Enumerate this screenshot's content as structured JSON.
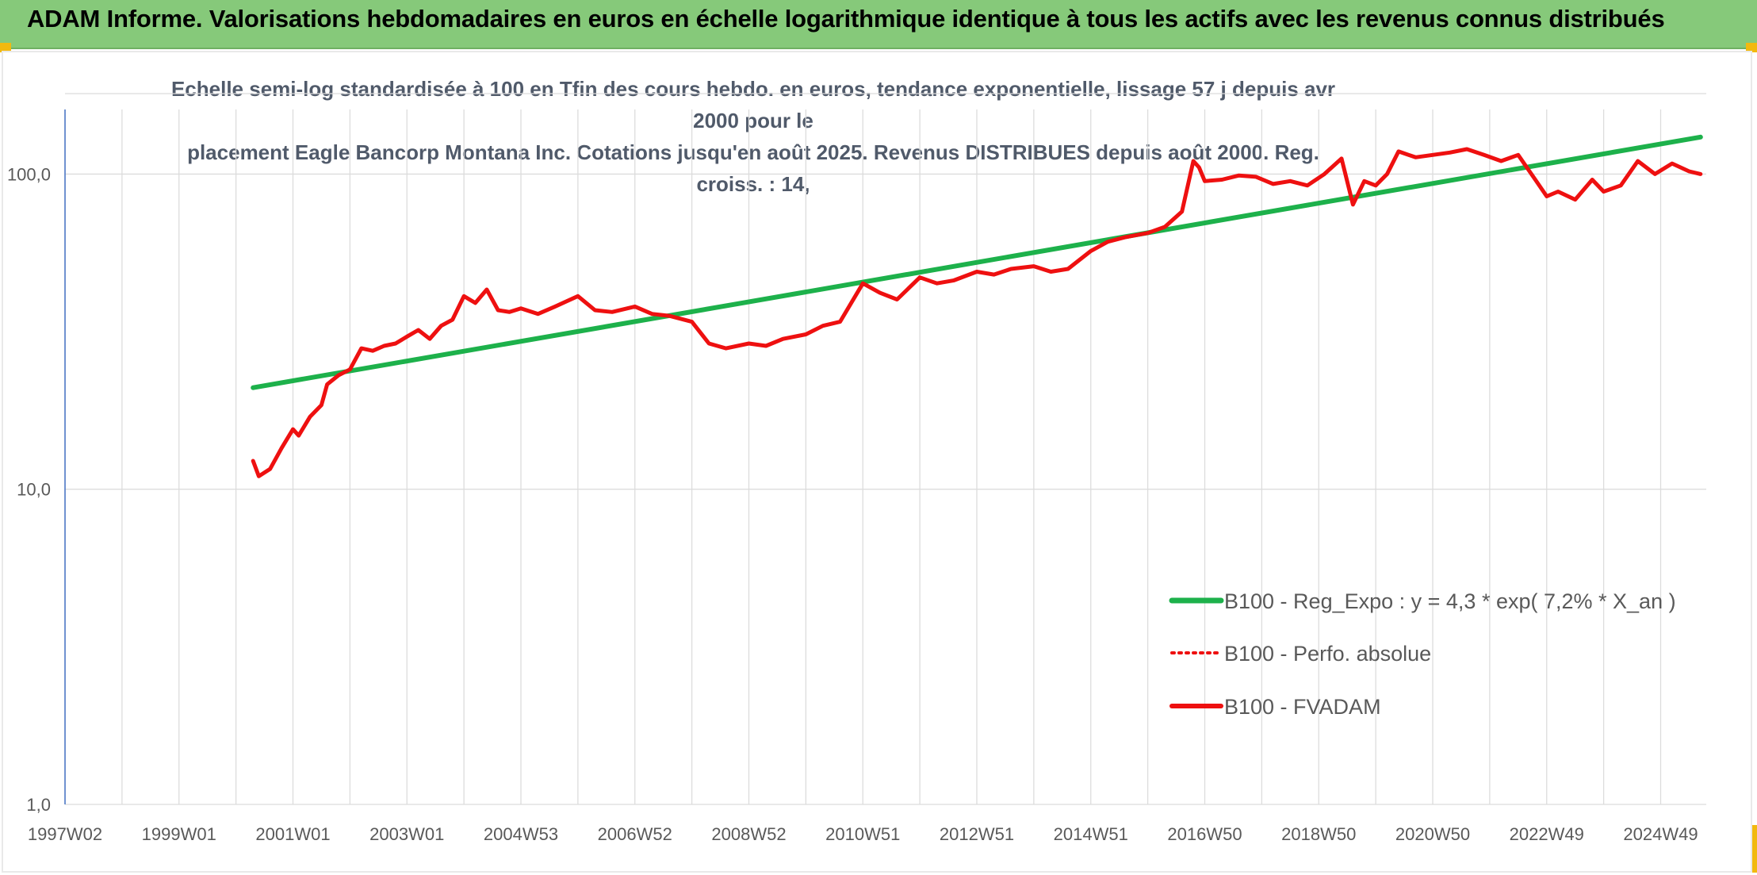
{
  "header": {
    "title": "ADAM Informe. Valorisations hebdomadaires en euros en échelle logarithmique identique à tous les actifs avec les revenus connus distribués"
  },
  "colors": {
    "header_bg": "#86c97a",
    "corner_accent": "#f2b90f",
    "trend": "#1db14b",
    "series": "#ee1010"
  },
  "chart_data": {
    "type": "line",
    "title_line1": "Echelle semi-log standardisée à 100 en Tfin des cours hebdo. en euros, tendance exponentielle, lissage 57 j depuis avr 2000 pour le",
    "title_line2": "placement Eagle Bancorp Montana Inc. Cotations jusqu'en août 2025. Revenus DISTRIBUES depuis août 2000. Reg. croiss. : 14,",
    "y_scale": "log",
    "ylim": [
      1,
      180
    ],
    "y_ticks": [
      1,
      10,
      100
    ],
    "y_tick_labels": [
      "1,0",
      "10,0",
      "100,0"
    ],
    "xlim": [
      1997.0,
      2025.8
    ],
    "x_ticks": [
      1997.0,
      1999.0,
      2001.0,
      2003.0,
      2005.0,
      2007.0,
      2009.0,
      2011.0,
      2013.0,
      2015.0,
      2017.0,
      2019.0,
      2021.0,
      2023.0,
      2025.0
    ],
    "x_tick_labels": [
      "1997W02",
      "1999W01",
      "2001W01",
      "2003W01",
      "2004W53",
      "2006W52",
      "2008W52",
      "2010W51",
      "2012W51",
      "2014W51",
      "2016W50",
      "2018W50",
      "2020W50",
      "2022W49",
      "2024W49"
    ],
    "grid": true,
    "legend_position": "right",
    "series": [
      {
        "name": "B100 - Reg_Expo : y = 4,3 * exp( 7,2% *  X_an )",
        "style": "solid",
        "x": [
          2000.3,
          2025.7
        ],
        "y": [
          21,
          131
        ]
      },
      {
        "name": "B100 - Perfo. absolue",
        "style": "dotted",
        "x": [],
        "y": []
      },
      {
        "name": "B100 - FVADAM",
        "style": "solid",
        "x": [
          2000.3,
          2000.4,
          2000.6,
          2000.8,
          2001.0,
          2001.1,
          2001.3,
          2001.5,
          2001.6,
          2001.8,
          2002.0,
          2002.2,
          2002.4,
          2002.6,
          2002.8,
          2003.0,
          2003.2,
          2003.4,
          2003.6,
          2003.8,
          2004.0,
          2004.2,
          2004.4,
          2004.6,
          2004.8,
          2005.0,
          2005.3,
          2005.6,
          2006.0,
          2006.3,
          2006.6,
          2007.0,
          2007.3,
          2007.6,
          2008.0,
          2008.3,
          2008.6,
          2009.0,
          2009.3,
          2009.6,
          2010.0,
          2010.3,
          2010.6,
          2011.0,
          2011.3,
          2011.6,
          2012.0,
          2012.3,
          2012.6,
          2013.0,
          2013.3,
          2013.6,
          2014.0,
          2014.3,
          2014.6,
          2015.0,
          2015.3,
          2015.6,
          2016.0,
          2016.3,
          2016.6,
          2016.8,
          2016.9,
          2017.0,
          2017.3,
          2017.6,
          2017.9,
          2018.2,
          2018.5,
          2018.8,
          2019.1,
          2019.4,
          2019.6,
          2019.8,
          2020.0,
          2020.2,
          2020.4,
          2020.7,
          2021.0,
          2021.3,
          2021.6,
          2021.9,
          2022.2,
          2022.5,
          2022.8,
          2023.0,
          2023.2,
          2023.5,
          2023.8,
          2024.0,
          2024.3,
          2024.6,
          2024.9,
          2025.2,
          2025.5,
          2025.7
        ],
        "y": [
          12.3,
          11.0,
          11.6,
          13.5,
          15.5,
          14.8,
          17.0,
          18.5,
          21.5,
          23.0,
          24.0,
          28.0,
          27.5,
          28.5,
          29.0,
          30.5,
          32.0,
          30.0,
          33.0,
          34.5,
          41.0,
          39.0,
          43.0,
          37.0,
          36.5,
          37.5,
          36.0,
          38.0,
          41.0,
          37.0,
          36.5,
          38.0,
          36.0,
          35.5,
          34.0,
          29.0,
          28.0,
          29.0,
          28.5,
          30.0,
          31.0,
          33.0,
          34.0,
          45.0,
          42.0,
          40.0,
          47.0,
          45.0,
          46.0,
          49.0,
          48.0,
          50.0,
          51.0,
          49.0,
          50.0,
          57.0,
          61.0,
          63.0,
          65.0,
          68.0,
          76.0,
          110.0,
          105.0,
          95.0,
          96.0,
          99.0,
          98.0,
          93.0,
          95.0,
          92.0,
          100.0,
          112.0,
          80.0,
          95.0,
          92.0,
          100.0,
          118.0,
          113.0,
          115.0,
          117.0,
          120.0,
          115.0,
          110.0,
          115.0,
          96.0,
          85.0,
          88.0,
          83.0,
          96.0,
          88.0,
          92.0,
          110.0,
          100.0,
          108.0,
          102.0,
          100.0
        ]
      }
    ]
  }
}
